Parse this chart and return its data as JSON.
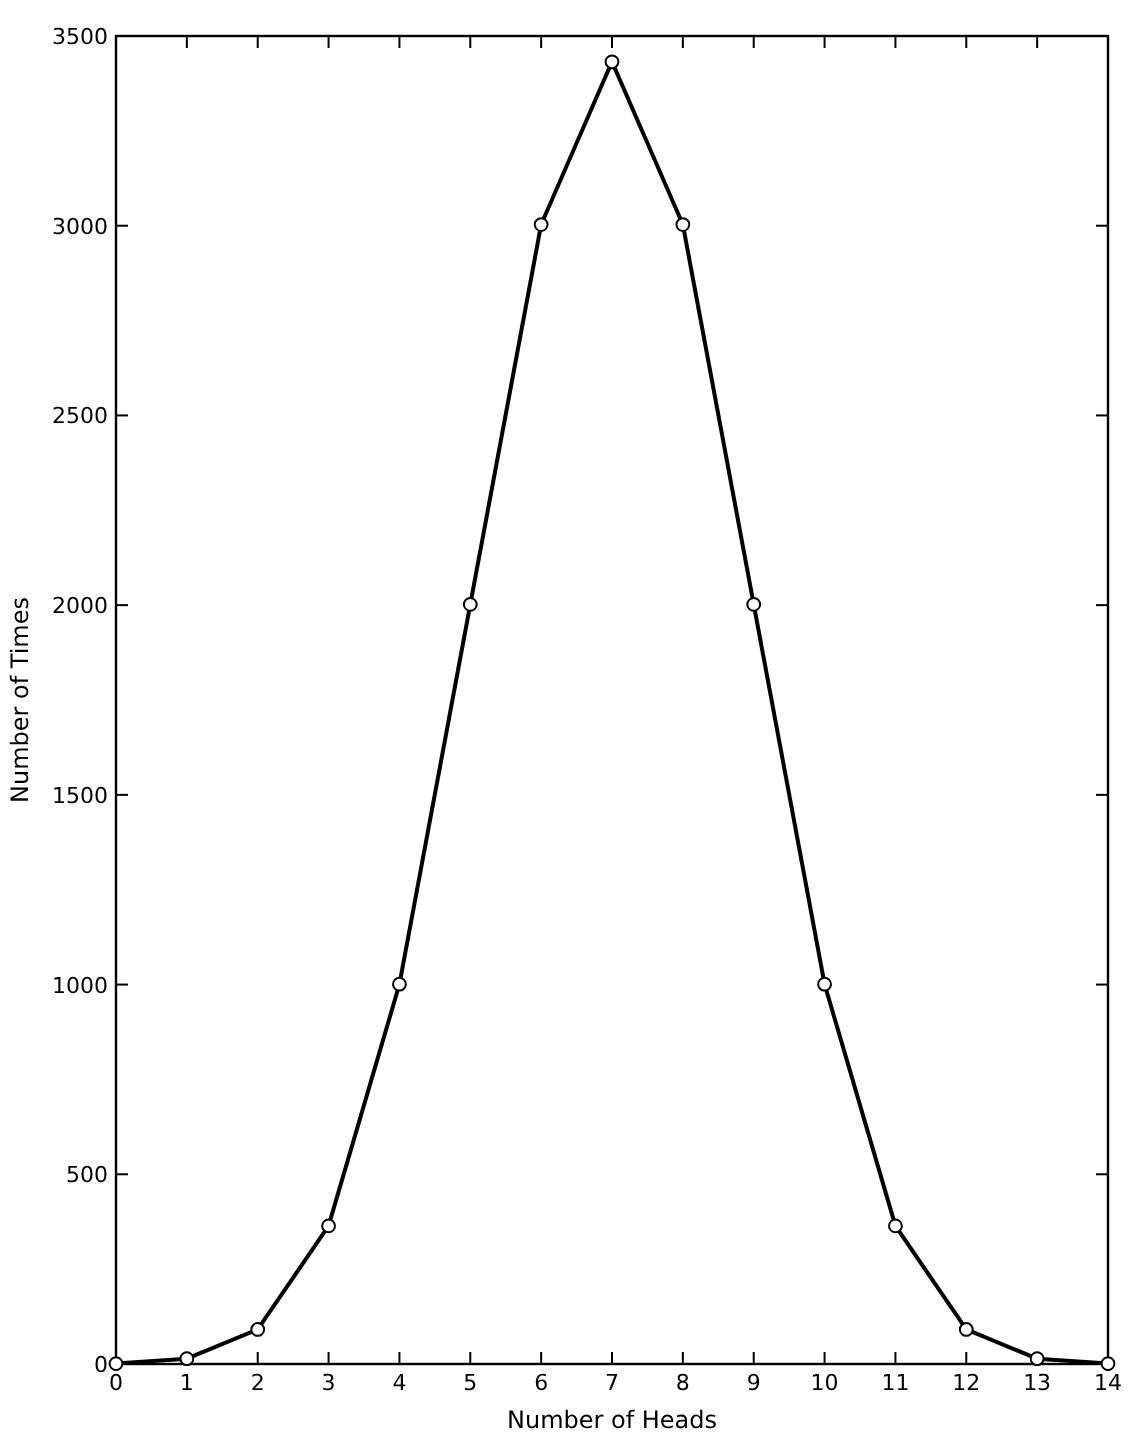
{
  "chart_data": {
    "type": "line",
    "xlabel": "Number of Heads",
    "ylabel": "Number of Times",
    "x": [
      0,
      1,
      2,
      3,
      4,
      5,
      6,
      7,
      8,
      9,
      10,
      11,
      12,
      13,
      14
    ],
    "values": [
      1,
      14,
      91,
      364,
      1001,
      2002,
      3003,
      3432,
      3003,
      2002,
      1001,
      364,
      91,
      14,
      1
    ],
    "color": "#000000",
    "marker": "circle",
    "line_style": "solid",
    "grid": false,
    "xlim": [
      0,
      14
    ],
    "xticks": [
      0,
      1,
      2,
      3,
      4,
      5,
      6,
      7,
      8,
      9,
      10,
      11,
      12,
      13,
      14
    ],
    "ylim": [
      0,
      3500
    ],
    "yticks": [
      0,
      500,
      1000,
      1500,
      2000,
      2500,
      3000,
      3500
    ]
  }
}
